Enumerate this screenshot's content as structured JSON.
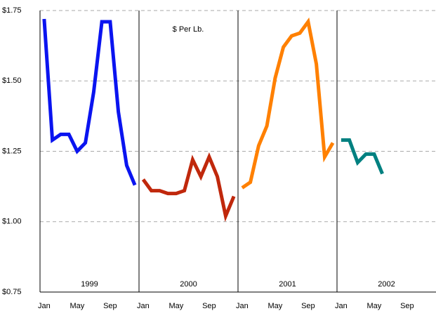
{
  "chart_data": {
    "type": "line",
    "annotation": "$ Per Lb.",
    "categories": [
      "Jan",
      null,
      null,
      null,
      "May",
      null,
      null,
      null,
      "Sep",
      null,
      null,
      null,
      "Jan",
      null,
      null,
      null,
      "May",
      null,
      null,
      null,
      "Sep",
      null,
      null,
      null,
      "Jan",
      null,
      null,
      null,
      "May",
      null,
      null,
      null,
      "Sep",
      null,
      null,
      null,
      "Jan",
      null,
      null,
      null,
      "May",
      null,
      null,
      null,
      "Sep",
      null,
      null,
      null
    ],
    "series": [
      {
        "name": "1999",
        "color": "#0a14f0",
        "values": [
          1.72,
          1.29,
          1.31,
          1.31,
          1.25,
          1.28,
          1.46,
          1.71,
          1.71,
          1.39,
          1.2,
          1.13,
          null,
          null,
          null,
          null,
          null,
          null,
          null,
          null,
          null,
          null,
          null,
          null,
          null,
          null,
          null,
          null,
          null,
          null,
          null,
          null,
          null,
          null,
          null,
          null,
          null,
          null,
          null,
          null,
          null,
          null,
          null,
          null,
          null,
          null,
          null,
          null
        ]
      },
      {
        "name": "2000",
        "color": "#c0280c",
        "values": [
          null,
          null,
          null,
          null,
          null,
          null,
          null,
          null,
          null,
          null,
          null,
          null,
          1.15,
          1.11,
          1.11,
          1.1,
          1.1,
          1.11,
          1.22,
          1.16,
          1.23,
          1.16,
          1.02,
          1.09,
          null,
          null,
          null,
          null,
          null,
          null,
          null,
          null,
          null,
          null,
          null,
          null,
          null,
          null,
          null,
          null,
          null,
          null,
          null,
          null,
          null,
          null,
          null,
          null
        ]
      },
      {
        "name": "2001",
        "color": "#ff8000",
        "values": [
          null,
          null,
          null,
          null,
          null,
          null,
          null,
          null,
          null,
          null,
          null,
          null,
          null,
          null,
          null,
          null,
          null,
          null,
          null,
          null,
          null,
          null,
          null,
          null,
          1.12,
          1.14,
          1.27,
          1.34,
          1.51,
          1.62,
          1.66,
          1.67,
          1.71,
          1.56,
          1.23,
          1.28,
          null,
          null,
          null,
          null,
          null,
          null,
          null,
          null,
          null,
          null,
          null,
          null
        ]
      },
      {
        "name": "2002",
        "color": "#008080",
        "values": [
          null,
          null,
          null,
          null,
          null,
          null,
          null,
          null,
          null,
          null,
          null,
          null,
          null,
          null,
          null,
          null,
          null,
          null,
          null,
          null,
          null,
          null,
          null,
          null,
          null,
          null,
          null,
          null,
          null,
          null,
          null,
          null,
          null,
          null,
          null,
          null,
          1.29,
          1.29,
          1.21,
          1.24,
          1.24,
          1.17,
          null,
          null,
          null,
          null,
          null,
          null
        ]
      }
    ],
    "ylim": [
      0.75,
      1.75
    ],
    "yticks": [
      {
        "value": 0.75,
        "label": "$0.75"
      },
      {
        "value": 1.0,
        "label": "$1.00"
      },
      {
        "value": 1.25,
        "label": "$1.25"
      },
      {
        "value": 1.5,
        "label": "$1.50"
      },
      {
        "value": 1.75,
        "label": "$1.75"
      }
    ],
    "grid": true
  }
}
